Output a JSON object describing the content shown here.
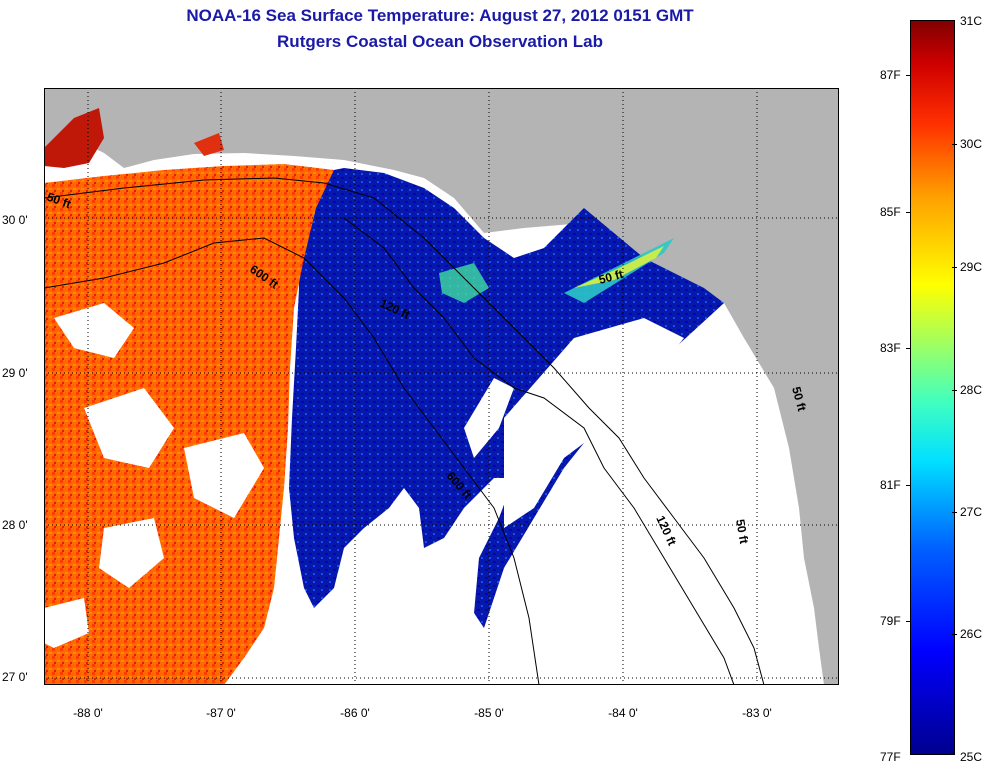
{
  "title": {
    "line1": "NOAA-16 Sea Surface Temperature:  August 27, 2012 0151 GMT",
    "line2": "Rutgers Coastal Ocean Observation Lab"
  },
  "axes": {
    "lat_labels": [
      "30 0'",
      "29 0'",
      "28 0'",
      "27 0'"
    ],
    "lon_labels": [
      "-88 0'",
      "-87 0'",
      "-86 0'",
      "-85 0'",
      "-84 0'",
      "-83 0'"
    ]
  },
  "contours": {
    "c50_west": "50 ft",
    "c600_west": "600 ft",
    "c120_mid": "120 ft",
    "c50_mid": "50 ft",
    "c600_south": "600 ft",
    "c120_east": "120 ft",
    "c50_east": "50 ft",
    "c50_keys": "50 ft"
  },
  "colorbar": {
    "celsius": [
      "31C",
      "30C",
      "29C",
      "28C",
      "27C",
      "26C",
      "25C"
    ],
    "fahrenheit": [
      "87F",
      "85F",
      "83F",
      "81F",
      "79F",
      "77F"
    ],
    "colors": [
      "#00008f",
      "#0000ff",
      "#0060ff",
      "#00e0ff",
      "#40ffbf",
      "#a0ff60",
      "#ffff00",
      "#ffa000",
      "#ff3000",
      "#d00000",
      "#800000"
    ]
  }
}
